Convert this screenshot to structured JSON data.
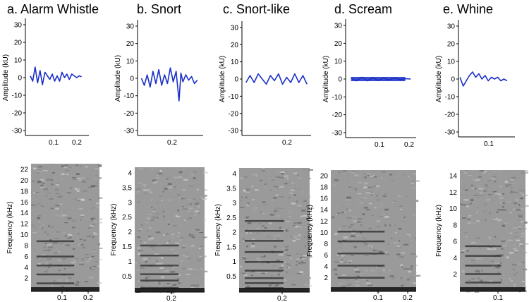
{
  "panels": [
    {
      "title": "a. Alarm Whistle",
      "waveform": {
        "ylabel": "Amplitude (kU)",
        "yticks": [
          "30",
          "20",
          "10",
          "0",
          "-10",
          "-20",
          "-30"
        ],
        "xticks": [
          "0.1",
          "0.2"
        ]
      },
      "spectrogram": {
        "ylabel": "Frequency (kHz)",
        "yticks": [
          "22",
          "20",
          "18",
          "16",
          "14",
          "12",
          "10",
          "8",
          "6",
          "4",
          "2"
        ],
        "xticks": [
          "0.1",
          "0.2"
        ]
      }
    },
    {
      "title": "b. Snort",
      "waveform": {
        "ylabel": "Amplitude (kU)",
        "yticks": [
          "30",
          "20",
          "10",
          "0",
          "-10",
          "-20",
          "-30"
        ],
        "xticks": [
          "0.2"
        ]
      },
      "spectrogram": {
        "ylabel": "Frequency (kHz)",
        "yticks": [
          "4",
          "3.5",
          "3",
          "2.5",
          "2",
          "1.5",
          "1",
          "0.5"
        ],
        "xticks": [
          "0.2"
        ]
      }
    },
    {
      "title": "c. Snort-like",
      "waveform": {
        "ylabel": "Amplitude (kU)",
        "yticks": [
          "30",
          "20",
          "10",
          "0",
          "-10",
          "-20",
          "-30"
        ],
        "xticks": [
          "0.2"
        ]
      },
      "spectrogram": {
        "ylabel": "Frequency (kHz)",
        "yticks": [
          "4",
          "3.5",
          "3",
          "2.5",
          "2",
          "1.5",
          "1",
          "0.5"
        ],
        "xticks": [
          "0.2"
        ]
      }
    },
    {
      "title": "d. Scream",
      "waveform": {
        "ylabel": "Amplitude (kU)",
        "yticks": [
          "30",
          "20",
          "10",
          "0",
          "-10",
          "-20",
          "-30"
        ],
        "xticks": [
          "0.1",
          "0.2"
        ]
      },
      "spectrogram": {
        "ylabel": "Frequency (kHz)",
        "yticks": [
          "20",
          "18",
          "16",
          "14",
          "12",
          "10",
          "8",
          "6",
          "4",
          "2"
        ],
        "xticks": [
          "0.1",
          "0.2"
        ]
      }
    },
    {
      "title": "e. Whine",
      "waveform": {
        "ylabel": "Amplitude (kU)",
        "yticks": [
          "30",
          "20",
          "10",
          "0",
          "-10",
          "-20",
          "-30"
        ],
        "xticks": [
          "0.1"
        ]
      },
      "spectrogram": {
        "ylabel": "Frequency (kHz)",
        "yticks": [
          "14",
          "12",
          "10",
          "8",
          "6",
          "4",
          "2"
        ],
        "xticks": [
          "0.1"
        ]
      }
    }
  ],
  "chart_data": [
    {
      "type": "line",
      "title": "a. Alarm Whistle",
      "ylabel": "Amplitude (kU)",
      "xlim": [
        0,
        0.26
      ],
      "ylim": [
        -32,
        32
      ],
      "x": [
        0.02,
        0.03,
        0.04,
        0.05,
        0.06,
        0.07,
        0.08,
        0.09,
        0.1,
        0.11,
        0.12,
        0.13,
        0.14,
        0.15,
        0.16,
        0.17,
        0.18,
        0.19,
        0.2,
        0.21,
        0.22,
        0.23
      ],
      "y": [
        1,
        -2,
        6,
        -3,
        4,
        -4,
        3,
        1,
        -1,
        2,
        -2,
        1,
        -2,
        3,
        0,
        2,
        -1,
        2,
        1,
        0,
        1,
        0.5
      ]
    },
    {
      "type": "line",
      "title": "b. Snort",
      "ylabel": "Amplitude (kU)",
      "xlim": [
        0,
        0.34
      ],
      "ylim": [
        -32,
        32
      ],
      "x": [
        0.02,
        0.035,
        0.05,
        0.065,
        0.08,
        0.095,
        0.11,
        0.125,
        0.14,
        0.155,
        0.17,
        0.185,
        0.2,
        0.215,
        0.225,
        0.235,
        0.25,
        0.265,
        0.28,
        0.295,
        0.31
      ],
      "y": [
        0,
        -4,
        2,
        -5,
        4,
        -3,
        5,
        -4,
        2,
        -3,
        6,
        -2,
        4,
        -13,
        3,
        -2,
        2,
        -1,
        1,
        -3,
        -1
      ]
    },
    {
      "type": "line",
      "title": "c. Snort-like",
      "ylabel": "Amplitude (kU)",
      "xlim": [
        0,
        0.34
      ],
      "ylim": [
        -32,
        32
      ],
      "x": [
        0.02,
        0.04,
        0.06,
        0.08,
        0.1,
        0.12,
        0.14,
        0.16,
        0.18,
        0.2,
        0.22,
        0.24,
        0.26,
        0.28,
        0.3,
        0.32
      ],
      "y": [
        -2,
        2,
        -2,
        3,
        0,
        -3,
        2,
        -1,
        3,
        -3,
        1,
        -2,
        3,
        -2,
        2,
        -3
      ]
    },
    {
      "type": "line",
      "title": "d. Scream",
      "ylabel": "Amplitude (kU)",
      "xlim": [
        0,
        0.26
      ],
      "ylim": [
        -32,
        32
      ],
      "x": [
        0.02,
        0.04,
        0.06,
        0.08,
        0.1,
        0.12,
        0.14,
        0.16,
        0.18,
        0.2,
        0.22,
        0.24
      ],
      "y": [
        0.5,
        -1,
        1,
        -1,
        0.8,
        -0.8,
        0.5,
        -0.5,
        0.5,
        -0.3,
        0.2,
        0
      ]
    },
    {
      "type": "line",
      "title": "e. Whine",
      "ylabel": "Amplitude (kU)",
      "xlim": [
        0,
        0.18
      ],
      "ylim": [
        -32,
        32
      ],
      "x": [
        0.005,
        0.015,
        0.025,
        0.035,
        0.045,
        0.055,
        0.065,
        0.075,
        0.085,
        0.095,
        0.105,
        0.115,
        0.125,
        0.135,
        0.145,
        0.155
      ],
      "y": [
        1,
        -4,
        -1,
        2,
        4,
        1,
        3,
        0,
        2,
        -1,
        1,
        0,
        1,
        -1,
        0,
        -1
      ]
    }
  ]
}
